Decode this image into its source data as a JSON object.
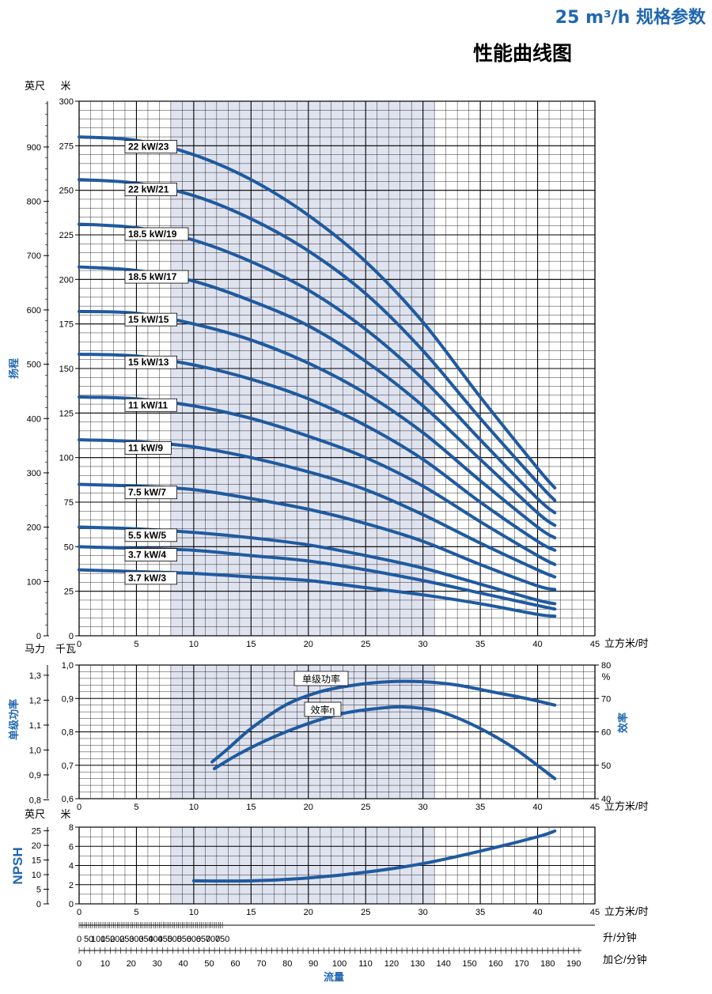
{
  "header": {
    "spec": "25 m³/h 规格参数",
    "title": "性能曲线图"
  },
  "colors": {
    "curve": "#1f5aa0",
    "shade": "#dfe3ef",
    "accent": "#1f67b1",
    "grid": "#000000"
  },
  "chart_data": [
    {
      "type": "line",
      "name": "head",
      "x_ticks": [
        0,
        5,
        10,
        15,
        20,
        25,
        30,
        35,
        40,
        45
      ],
      "x_unit": "立方米/时",
      "xlim": [
        0,
        45
      ],
      "ylim": [
        0,
        300
      ],
      "y_ticks": [
        0,
        25,
        50,
        75,
        100,
        125,
        150,
        175,
        200,
        225,
        250,
        275,
        300
      ],
      "y2_ticks": [
        0,
        100,
        200,
        300,
        400,
        500,
        600,
        700,
        800,
        900
      ],
      "y_unit_left": "英尺",
      "y_unit_right": "米",
      "ylabel": "扬程",
      "shaded_x_range": [
        8,
        31
      ],
      "series": [
        {
          "name": "22 kW/23",
          "x": [
            0,
            5,
            10,
            15,
            20,
            25,
            30,
            35,
            40,
            41.5
          ],
          "y": [
            280,
            278,
            270,
            256,
            236,
            210,
            176,
            134,
            94,
            83
          ]
        },
        {
          "name": "22 kW/21",
          "x": [
            0,
            5,
            10,
            15,
            20,
            25,
            30,
            35,
            40,
            41.5
          ],
          "y": [
            256,
            254,
            247,
            234,
            216,
            192,
            160,
            122,
            86,
            76
          ]
        },
        {
          "name": "18.5 kW/19",
          "x": [
            0,
            5,
            10,
            15,
            20,
            25,
            30,
            35,
            40,
            41.5
          ],
          "y": [
            231,
            229,
            222,
            210,
            194,
            172,
            144,
            110,
            77,
            69
          ]
        },
        {
          "name": "18.5 kW/17",
          "x": [
            0,
            5,
            10,
            15,
            20,
            25,
            30,
            35,
            40,
            41.5
          ],
          "y": [
            207,
            205,
            199,
            188,
            174,
            154,
            129,
            99,
            69,
            62
          ]
        },
        {
          "name": "15 kW/15",
          "x": [
            0,
            5,
            10,
            15,
            20,
            25,
            30,
            35,
            40,
            41.5
          ],
          "y": [
            182,
            181,
            175,
            166,
            153,
            136,
            114,
            87,
            61,
            55
          ]
        },
        {
          "name": "15 kW/13",
          "x": [
            0,
            5,
            10,
            15,
            20,
            25,
            30,
            35,
            40,
            41.5
          ],
          "y": [
            158,
            157,
            152,
            144,
            133,
            118,
            99,
            75,
            53,
            48
          ]
        },
        {
          "name": "11 kW/11",
          "x": [
            0,
            5,
            10,
            15,
            20,
            25,
            30,
            35,
            40,
            41.5
          ],
          "y": [
            134,
            133,
            129,
            122,
            112,
            100,
            84,
            64,
            45,
            40
          ]
        },
        {
          "name": "11 kW/9",
          "x": [
            0,
            5,
            10,
            15,
            20,
            25,
            30,
            35,
            40,
            41.5
          ],
          "y": [
            110,
            109,
            106,
            100,
            92,
            82,
            68,
            52,
            37,
            33
          ]
        },
        {
          "name": "7.5 kW/7",
          "x": [
            0,
            5,
            10,
            15,
            20,
            25,
            30,
            35,
            40,
            41.5
          ],
          "y": [
            85,
            84,
            82,
            77,
            71,
            63,
            53,
            40,
            28,
            26
          ]
        },
        {
          "name": "5.5 kW/5",
          "x": [
            0,
            5,
            10,
            15,
            20,
            25,
            30,
            35,
            40,
            41.5
          ],
          "y": [
            61,
            60,
            58,
            55,
            51,
            45,
            38,
            29,
            20,
            18
          ]
        },
        {
          "name": "3.7 kW/4",
          "x": [
            0,
            5,
            10,
            15,
            20,
            25,
            30,
            35,
            40,
            41.5
          ],
          "y": [
            50,
            49,
            48,
            45,
            42,
            37,
            31,
            24,
            17,
            15
          ]
        },
        {
          "name": "3.7 kW/3",
          "x": [
            0,
            5,
            10,
            15,
            20,
            25,
            30,
            35,
            40,
            41.5
          ],
          "y": [
            37,
            36,
            35,
            33,
            31,
            27,
            23,
            18,
            12,
            11
          ]
        }
      ]
    },
    {
      "type": "line",
      "name": "power-efficiency",
      "x_ticks": [
        0,
        5,
        10,
        15,
        20,
        25,
        30,
        35,
        40,
        45
      ],
      "x_unit": "立方米/时",
      "xlim": [
        0,
        45
      ],
      "y_unit_left": "马力",
      "y_unit_right": "千瓦",
      "ylabel": "单级功率",
      "ylim": [
        0.6,
        1.0
      ],
      "y_ticks": [
        0.6,
        0.7,
        0.8,
        0.9,
        1.0
      ],
      "y_ticks_text": [
        "0,6",
        "0,7",
        "0,8",
        "0,9",
        "1,0"
      ],
      "y_hp_ticks_text": [
        "0,8",
        "0,9",
        "1,0",
        "1,1",
        "1,2",
        "1,3"
      ],
      "y2label": "效率",
      "y2_unit": "%",
      "y2lim": [
        40,
        80
      ],
      "y2_ticks": [
        40,
        50,
        60,
        70,
        80
      ],
      "shaded_x_range": [
        8,
        31
      ],
      "series": [
        {
          "name": "单级功率",
          "axis": "left",
          "x": [
            11.6,
            13,
            15,
            18,
            21,
            24,
            27,
            30,
            33,
            36,
            39,
            41.5
          ],
          "y": [
            0.71,
            0.75,
            0.81,
            0.88,
            0.92,
            0.94,
            0.95,
            0.95,
            0.94,
            0.92,
            0.9,
            0.88
          ]
        },
        {
          "name": "效率η",
          "axis": "right",
          "x": [
            11.8,
            14,
            17,
            20,
            23,
            26,
            28,
            30,
            32,
            35,
            38,
            41.5
          ],
          "y": [
            49,
            53.5,
            58.5,
            62.5,
            65.5,
            67,
            67.5,
            67,
            65.5,
            61,
            55,
            46
          ]
        }
      ]
    },
    {
      "type": "line",
      "name": "npsh",
      "x_ticks": [
        0,
        5,
        10,
        15,
        20,
        25,
        30,
        35,
        40,
        45
      ],
      "x_unit": "立方米/时",
      "xlim": [
        0,
        45
      ],
      "ylim": [
        0,
        8
      ],
      "y_ticks": [
        0,
        2,
        4,
        6,
        8
      ],
      "y_ft_ticks": [
        0,
        5,
        10,
        15,
        20,
        25
      ],
      "y_unit_left": "英尺",
      "y_unit_right": "米",
      "ylabel": "NPSH",
      "shaded_x_range": [
        8,
        31
      ],
      "series": [
        {
          "name": "NPSH",
          "x": [
            10,
            15,
            20,
            25,
            30,
            35,
            40,
            41.5
          ],
          "y": [
            2.4,
            2.4,
            2.7,
            3.3,
            4.2,
            5.5,
            7.0,
            7.6
          ]
        }
      ]
    }
  ],
  "flow_axes": {
    "lpm_ticks": [
      0,
      50,
      100,
      150,
      200,
      250,
      300,
      350,
      400,
      450,
      500,
      550,
      600,
      650,
      700,
      750
    ],
    "lpm_unit": "升/分钟",
    "gpm_ticks": [
      0,
      10,
      20,
      30,
      40,
      50,
      60,
      70,
      80,
      90,
      100,
      110,
      120,
      130,
      140,
      150,
      160,
      170,
      180,
      190
    ],
    "gpm_unit": "加仑/分钟",
    "label": "流量"
  }
}
